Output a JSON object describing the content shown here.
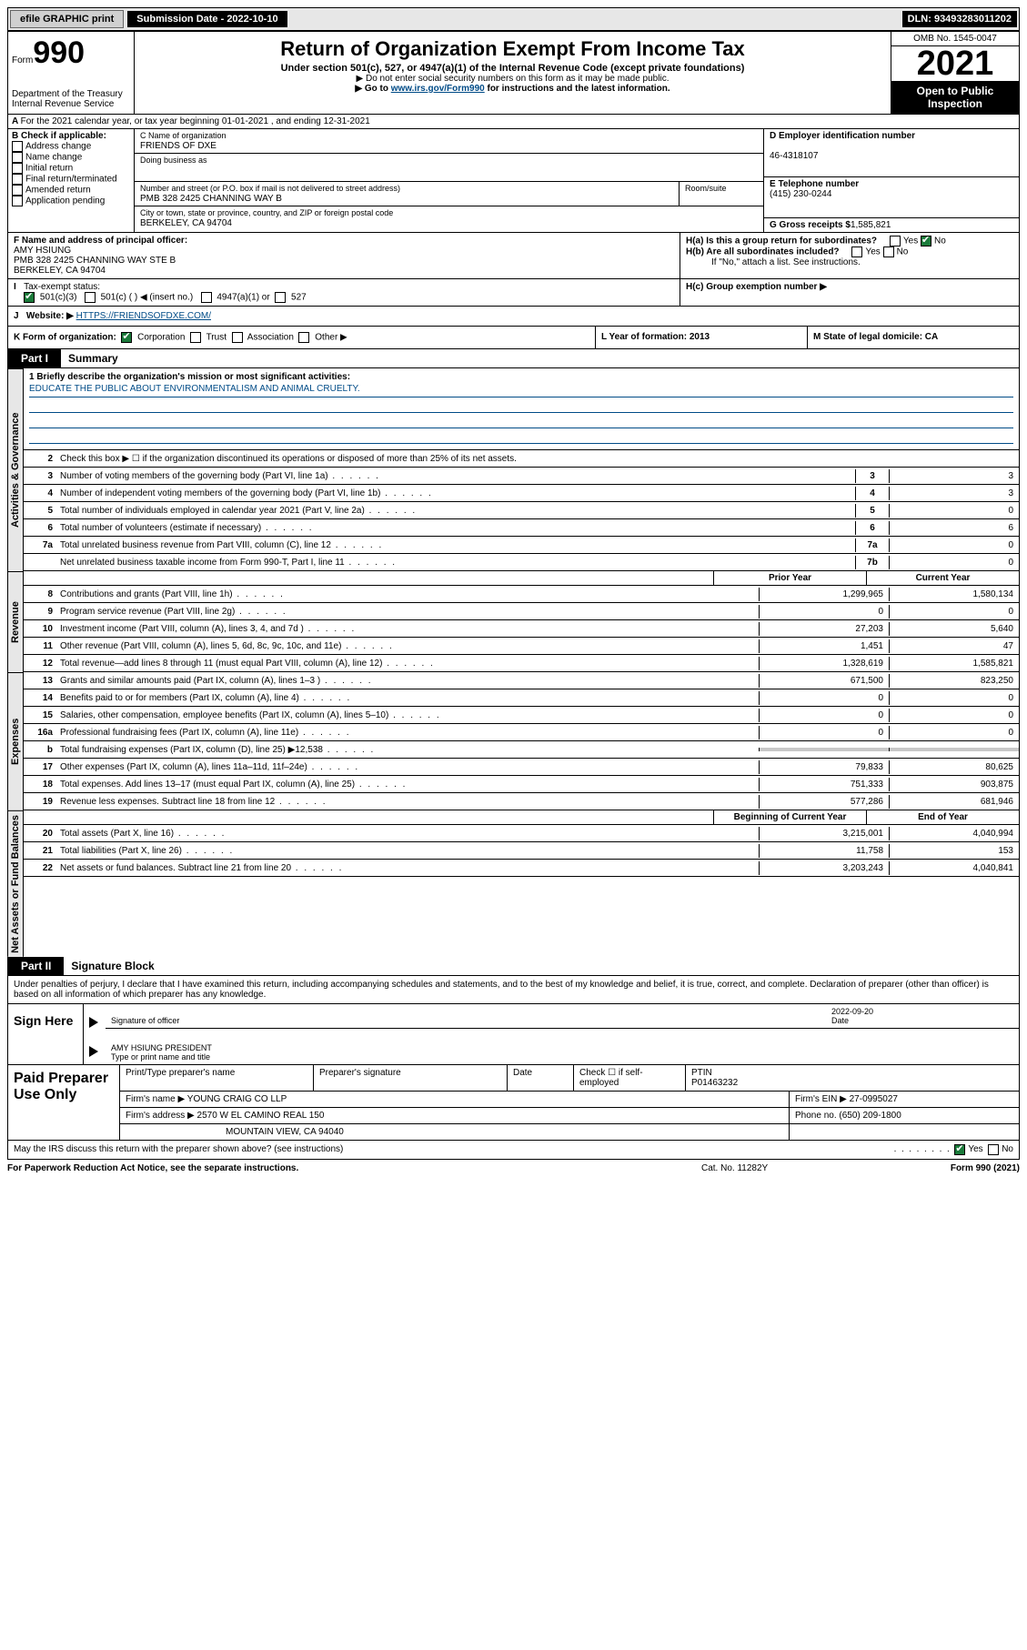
{
  "topbar": {
    "efile": "efile GRAPHIC print",
    "subdate": "Submission Date - 2022-10-10",
    "dln": "DLN: 93493283011202"
  },
  "header": {
    "form": "Form",
    "formnum": "990",
    "dept": "Department of the Treasury Internal Revenue Service",
    "title": "Return of Organization Exempt From Income Tax",
    "sub1": "Under section 501(c), 527, or 4947(a)(1) of the Internal Revenue Code (except private foundations)",
    "sub2": "▶ Do not enter social security numbers on this form as it may be made public.",
    "sub3_pre": "▶ Go to ",
    "sub3_link": "www.irs.gov/Form990",
    "sub3_post": " for instructions and the latest information.",
    "omb": "OMB No. 1545-0047",
    "year": "2021",
    "open": "Open to Public Inspection"
  },
  "rowA": "For the 2021 calendar year, or tax year beginning 01-01-2021    , and ending 12-31-2021",
  "checkB": {
    "label": "B Check if applicable:",
    "opts": [
      "Address change",
      "Name change",
      "Initial return",
      "Final return/terminated",
      "Amended return",
      "Application pending"
    ]
  },
  "boxC": {
    "nameLabel": "C Name of organization",
    "name": "FRIENDS OF DXE",
    "dba": "Doing business as",
    "addrLabel": "Number and street (or P.O. box if mail is not delivered to street address)",
    "room": "Room/suite",
    "addr": "PMB 328 2425 CHANNING WAY B",
    "cityLabel": "City or town, state or province, country, and ZIP or foreign postal code",
    "city": "BERKELEY, CA  94704"
  },
  "boxD": {
    "label": "D Employer identification number",
    "ein": "46-4318107"
  },
  "boxE": {
    "label": "E Telephone number",
    "phone": "(415) 230-0244"
  },
  "boxG": {
    "label": "G Gross receipts $",
    "val": "1,585,821"
  },
  "boxF": {
    "label": "F  Name and address of principal officer:",
    "name": "AMY HSIUNG",
    "addr": "PMB 328 2425 CHANNING WAY STE B",
    "city": "BERKELEY, CA  94704"
  },
  "boxH": {
    "ha": "H(a)  Is this a group return for subordinates?",
    "hb": "H(b)  Are all subordinates included?",
    "hbnote": "If \"No,\" attach a list. See instructions.",
    "hc": "H(c)  Group exemption number ▶",
    "yes": "Yes",
    "no": "No"
  },
  "rowI": {
    "label": "Tax-exempt status:",
    "o1": "501(c)(3)",
    "o2": "501(c) (   ) ◀ (insert no.)",
    "o3": "4947(a)(1) or",
    "o4": "527"
  },
  "rowJ": {
    "label": "Website: ▶",
    "url": "HTTPS://FRIENDSOFDXE.COM/"
  },
  "rowK": {
    "k": "K Form of organization:",
    "corp": "Corporation",
    "trust": "Trust",
    "assoc": "Association",
    "other": "Other ▶",
    "l": "L Year of formation: 2013",
    "m": "M State of legal domicile: CA"
  },
  "part1": {
    "label": "Part I",
    "title": "Summary"
  },
  "mission": {
    "q": "1    Briefly describe the organization's mission or most significant activities:",
    "a": "EDUCATE THE PUBLIC ABOUT ENVIRONMENTALISM AND ANIMAL CRUELTY."
  },
  "line2": "Check this box ▶ ☐  if the organization discontinued its operations or disposed of more than 25% of its net assets.",
  "gov_lines": [
    {
      "n": "3",
      "d": "Number of voting members of the governing body (Part VI, line 1a)",
      "box": "3",
      "v": "3"
    },
    {
      "n": "4",
      "d": "Number of independent voting members of the governing body (Part VI, line 1b)",
      "box": "4",
      "v": "3"
    },
    {
      "n": "5",
      "d": "Total number of individuals employed in calendar year 2021 (Part V, line 2a)",
      "box": "5",
      "v": "0"
    },
    {
      "n": "6",
      "d": "Total number of volunteers (estimate if necessary)",
      "box": "6",
      "v": "6"
    },
    {
      "n": "7a",
      "d": "Total unrelated business revenue from Part VIII, column (C), line 12",
      "box": "7a",
      "v": "0"
    },
    {
      "n": "",
      "d": "Net unrelated business taxable income from Form 990-T, Part I, line 11",
      "box": "7b",
      "v": "0"
    }
  ],
  "colhdr": {
    "prior": "Prior Year",
    "curr": "Current Year"
  },
  "rev_lines": [
    {
      "n": "8",
      "d": "Contributions and grants (Part VIII, line 1h)",
      "p": "1,299,965",
      "c": "1,580,134"
    },
    {
      "n": "9",
      "d": "Program service revenue (Part VIII, line 2g)",
      "p": "0",
      "c": "0"
    },
    {
      "n": "10",
      "d": "Investment income (Part VIII, column (A), lines 3, 4, and 7d )",
      "p": "27,203",
      "c": "5,640"
    },
    {
      "n": "11",
      "d": "Other revenue (Part VIII, column (A), lines 5, 6d, 8c, 9c, 10c, and 11e)",
      "p": "1,451",
      "c": "47"
    },
    {
      "n": "12",
      "d": "Total revenue—add lines 8 through 11 (must equal Part VIII, column (A), line 12)",
      "p": "1,328,619",
      "c": "1,585,821"
    }
  ],
  "exp_lines": [
    {
      "n": "13",
      "d": "Grants and similar amounts paid (Part IX, column (A), lines 1–3 )",
      "p": "671,500",
      "c": "823,250"
    },
    {
      "n": "14",
      "d": "Benefits paid to or for members (Part IX, column (A), line 4)",
      "p": "0",
      "c": "0"
    },
    {
      "n": "15",
      "d": "Salaries, other compensation, employee benefits (Part IX, column (A), lines 5–10)",
      "p": "0",
      "c": "0"
    },
    {
      "n": "16a",
      "d": "Professional fundraising fees (Part IX, column (A), line 11e)",
      "p": "0",
      "c": "0"
    },
    {
      "n": "b",
      "d": "Total fundraising expenses (Part IX, column (D), line 25) ▶12,538",
      "p": "",
      "c": "",
      "gray": true
    },
    {
      "n": "17",
      "d": "Other expenses (Part IX, column (A), lines 11a–11d, 11f–24e)",
      "p": "79,833",
      "c": "80,625"
    },
    {
      "n": "18",
      "d": "Total expenses. Add lines 13–17 (must equal Part IX, column (A), line 25)",
      "p": "751,333",
      "c": "903,875"
    },
    {
      "n": "19",
      "d": "Revenue less expenses. Subtract line 18 from line 12",
      "p": "577,286",
      "c": "681,946"
    }
  ],
  "na_hdr": {
    "b": "Beginning of Current Year",
    "e": "End of Year"
  },
  "na_lines": [
    {
      "n": "20",
      "d": "Total assets (Part X, line 16)",
      "p": "3,215,001",
      "c": "4,040,994"
    },
    {
      "n": "21",
      "d": "Total liabilities (Part X, line 26)",
      "p": "11,758",
      "c": "153"
    },
    {
      "n": "22",
      "d": "Net assets or fund balances. Subtract line 21 from line 20",
      "p": "3,203,243",
      "c": "4,040,841"
    }
  ],
  "part2": {
    "label": "Part II",
    "title": "Signature Block"
  },
  "sig": {
    "decl": "Under penalties of perjury, I declare that I have examined this return, including accompanying schedules and statements, and to the best of my knowledge and belief, it is true, correct, and complete. Declaration of preparer (other than officer) is based on all information of which preparer has any knowledge.",
    "here": "Sign Here",
    "sigoff": "Signature of officer",
    "date": "2022-09-20",
    "dateL": "Date",
    "name": "AMY HSIUNG PRESIDENT",
    "nameL": "Type or print name and title"
  },
  "prep": {
    "label": "Paid Preparer Use Only",
    "h1": "Print/Type preparer's name",
    "h2": "Preparer's signature",
    "h3": "Date",
    "h4pre": "Check ☐ if self-employed",
    "h5": "PTIN",
    "ptin": "P01463232",
    "firmL": "Firm's name    ▶",
    "firm": "YOUNG CRAIG CO LLP",
    "einL": "Firm's EIN ▶",
    "ein": "27-0995027",
    "addrL": "Firm's address ▶",
    "addr1": "2570 W EL CAMINO REAL 150",
    "addr2": "MOUNTAIN VIEW, CA  94040",
    "phoneL": "Phone no.",
    "phone": "(650) 209-1800"
  },
  "may": {
    "q": "May the IRS discuss this return with the preparer shown above? (see instructions)",
    "yes": "Yes",
    "no": "No"
  },
  "footer": {
    "pra": "For Paperwork Reduction Act Notice, see the separate instructions.",
    "cat": "Cat. No. 11282Y",
    "form": "Form 990 (2021)"
  },
  "tabs": {
    "gov": "Activities & Governance",
    "rev": "Revenue",
    "exp": "Expenses",
    "na": "Net Assets or Fund Balances"
  }
}
